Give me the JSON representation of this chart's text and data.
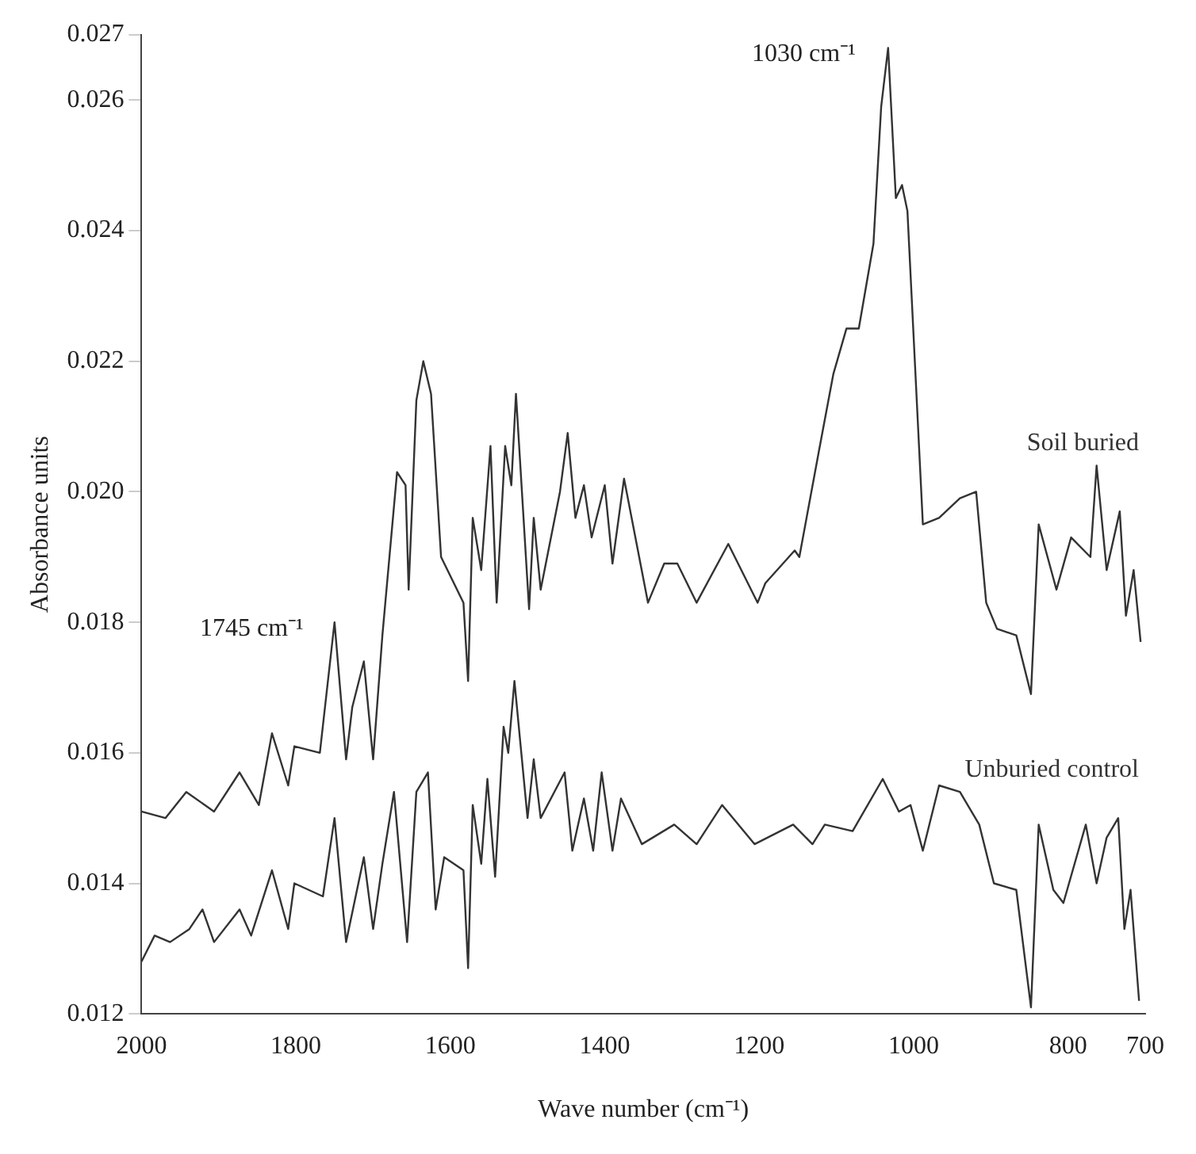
{
  "chart_data": {
    "type": "line",
    "xlabel": "Wave number (cm⁻¹)",
    "ylabel": "Absorbance units",
    "xlim": [
      2000,
      700
    ],
    "xticks": [
      2000,
      1800,
      1600,
      1400,
      1200,
      1000,
      800,
      700
    ],
    "ylim": [
      0.012,
      0.027
    ],
    "yticks": [
      0.012,
      0.014,
      0.016,
      0.018,
      {
        "value": 0.02,
        "label": "0.020"
      },
      0.022,
      0.024,
      0.026,
      0.027
    ],
    "grid": false,
    "legend": false,
    "marker": "none",
    "line_style": "solid",
    "annotations": [
      {
        "text": "1030 cm⁻¹",
        "x": 1030,
        "y": 0.0268
      },
      {
        "text": "1745 cm⁻¹",
        "x": 1745,
        "y": 0.018
      }
    ],
    "series": [
      {
        "name": "Soil buried",
        "color": "#333333",
        "x": [
          2000,
          1969,
          1942,
          1906,
          1873,
          1848,
          1831,
          1810,
          1802,
          1769,
          1750,
          1735,
          1727,
          1712,
          1700,
          1688,
          1669,
          1658,
          1654,
          1644,
          1635,
          1625,
          1612,
          1583,
          1577,
          1571,
          1560,
          1548,
          1540,
          1529,
          1521,
          1515,
          1498,
          1492,
          1483,
          1458,
          1448,
          1438,
          1427,
          1417,
          1400,
          1390,
          1375,
          1344,
          1323,
          1306,
          1281,
          1240,
          1202,
          1192,
          1154,
          1148,
          1123,
          1104,
          1087,
          1071,
          1052,
          1042,
          1033,
          1023,
          1015,
          1008,
          988,
          967,
          940,
          919,
          906,
          892,
          867,
          848,
          838,
          815,
          796,
          771,
          763,
          750,
          733,
          725,
          715,
          706
        ],
        "values": [
          0.0151,
          0.015,
          0.0154,
          0.0151,
          0.0157,
          0.0152,
          0.0163,
          0.0155,
          0.0161,
          0.016,
          0.018,
          0.0159,
          0.0167,
          0.0174,
          0.0159,
          0.0178,
          0.0203,
          0.0201,
          0.0185,
          0.0214,
          0.022,
          0.0215,
          0.019,
          0.0183,
          0.0171,
          0.0196,
          0.0188,
          0.0207,
          0.0183,
          0.0207,
          0.0201,
          0.0215,
          0.0182,
          0.0196,
          0.0185,
          0.02,
          0.0209,
          0.0196,
          0.0201,
          0.0193,
          0.0201,
          0.0189,
          0.0202,
          0.0183,
          0.0189,
          0.0189,
          0.0183,
          0.0192,
          0.0183,
          0.0186,
          0.0191,
          0.019,
          0.0206,
          0.0218,
          0.0225,
          0.0225,
          0.0238,
          0.0259,
          0.0268,
          0.0245,
          0.0247,
          0.0243,
          0.0195,
          0.0196,
          0.0199,
          0.02,
          0.0183,
          0.0179,
          0.0178,
          0.0169,
          0.0195,
          0.0185,
          0.0193,
          0.019,
          0.0204,
          0.0188,
          0.0197,
          0.0181,
          0.0188,
          0.0177
        ]
      },
      {
        "name": "Unburied control",
        "color": "#333333",
        "x": [
          2000,
          1983,
          1963,
          1938,
          1921,
          1906,
          1873,
          1858,
          1831,
          1810,
          1802,
          1765,
          1750,
          1735,
          1712,
          1700,
          1688,
          1673,
          1656,
          1644,
          1629,
          1619,
          1608,
          1583,
          1577,
          1571,
          1560,
          1552,
          1542,
          1531,
          1525,
          1517,
          1500,
          1492,
          1483,
          1452,
          1442,
          1427,
          1415,
          1404,
          1390,
          1379,
          1352,
          1310,
          1281,
          1248,
          1206,
          1156,
          1131,
          1115,
          1079,
          1040,
          1019,
          1004,
          988,
          967,
          940,
          915,
          896,
          867,
          848,
          838,
          819,
          806,
          777,
          763,
          750,
          735,
          727,
          719,
          708
        ],
        "values": [
          0.0128,
          0.0132,
          0.0131,
          0.0133,
          0.0136,
          0.0131,
          0.0136,
          0.0132,
          0.0142,
          0.0133,
          0.014,
          0.0138,
          0.015,
          0.0131,
          0.0144,
          0.0133,
          0.0143,
          0.0154,
          0.0131,
          0.0154,
          0.0157,
          0.0136,
          0.0144,
          0.0142,
          0.0127,
          0.0152,
          0.0143,
          0.0156,
          0.0141,
          0.0164,
          0.016,
          0.0171,
          0.015,
          0.0159,
          0.015,
          0.0157,
          0.0145,
          0.0153,
          0.0145,
          0.0157,
          0.0145,
          0.0153,
          0.0146,
          0.0149,
          0.0146,
          0.0152,
          0.0146,
          0.0149,
          0.0146,
          0.0149,
          0.0148,
          0.0156,
          0.0151,
          0.0152,
          0.0145,
          0.0155,
          0.0154,
          0.0149,
          0.014,
          0.0139,
          0.0121,
          0.0149,
          0.0139,
          0.0137,
          0.0149,
          0.014,
          0.0147,
          0.015,
          0.0133,
          0.0139,
          0.0122
        ]
      }
    ]
  }
}
